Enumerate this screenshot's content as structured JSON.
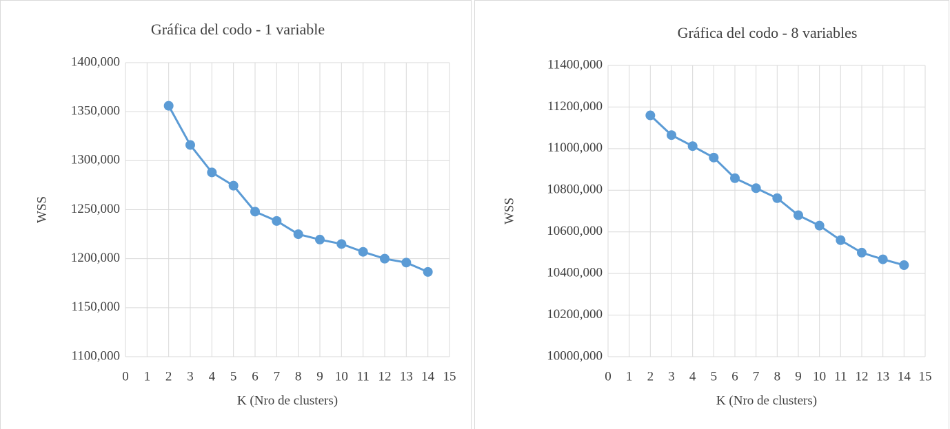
{
  "chart_data": [
    {
      "type": "line",
      "title": "Gráfica del codo  - 1 variable",
      "xlabel": "K (Nro de clusters)",
      "ylabel": "WSS",
      "x": [
        2,
        3,
        4,
        5,
        6,
        7,
        8,
        9,
        10,
        11,
        12,
        13,
        14
      ],
      "values": [
        1356,
        1316,
        1288,
        1274.5,
        1248,
        1238.5,
        1225,
        1219.5,
        1215,
        1207,
        1200,
        1196,
        1186.5
      ],
      "color": "#5b9bd5",
      "grid": true,
      "xlim": [
        0,
        15
      ],
      "xticks": [
        0,
        1,
        2,
        3,
        4,
        5,
        6,
        7,
        8,
        9,
        10,
        11,
        12,
        13,
        14,
        15
      ],
      "ylim": [
        1100,
        1400
      ],
      "yticks": [
        {
          "value": 1100,
          "label": "1100,000"
        },
        {
          "value": 1150,
          "label": "1150,000"
        },
        {
          "value": 1200,
          "label": "1200,000"
        },
        {
          "value": 1250,
          "label": "1250,000"
        },
        {
          "value": 1300,
          "label": "1300,000"
        },
        {
          "value": 1350,
          "label": "1350,000"
        },
        {
          "value": 1400,
          "label": "1400,000"
        }
      ]
    },
    {
      "type": "line",
      "title": "Gráfica del codo - 8 variables",
      "xlabel": "K (Nro de clusters)",
      "ylabel": "WSS",
      "x": [
        2,
        3,
        4,
        5,
        6,
        7,
        8,
        9,
        10,
        11,
        12,
        13,
        14
      ],
      "values": [
        11160,
        11065,
        11012,
        10957,
        10858,
        10810,
        10762,
        10680,
        10630,
        10560,
        10500,
        10468,
        10440
      ],
      "color": "#5b9bd5",
      "grid": true,
      "xlim": [
        0,
        15
      ],
      "xticks": [
        0,
        1,
        2,
        3,
        4,
        5,
        6,
        7,
        8,
        9,
        10,
        11,
        12,
        13,
        14,
        15
      ],
      "ylim": [
        10000,
        11400
      ],
      "yticks": [
        {
          "value": 10000,
          "label": "10000,000"
        },
        {
          "value": 10200,
          "label": "10200,000"
        },
        {
          "value": 10400,
          "label": "10400,000"
        },
        {
          "value": 10600,
          "label": "10600,000"
        },
        {
          "value": 10800,
          "label": "10800,000"
        },
        {
          "value": 11000,
          "label": "11000,000"
        },
        {
          "value": 11200,
          "label": "11200,000"
        },
        {
          "value": 11400,
          "label": "11400,000"
        }
      ]
    }
  ]
}
